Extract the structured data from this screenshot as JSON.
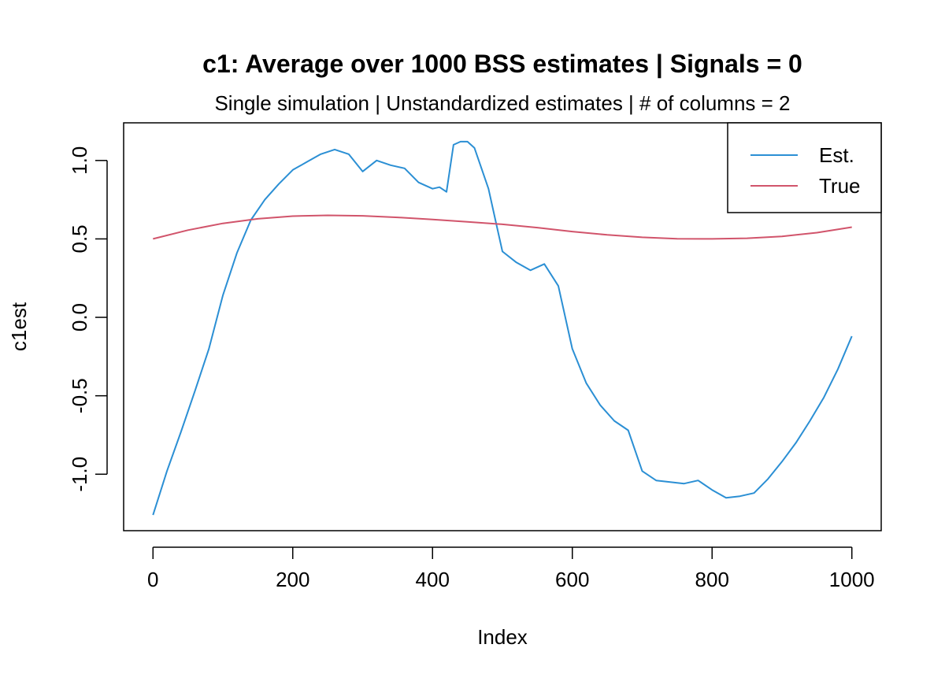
{
  "chart_data": {
    "type": "line",
    "title": "c1: Average over 1000 BSS estimates  |  Signals = 0",
    "subtitle": "Single simulation  |  Unstandardized estimates  |  # of columns = 2",
    "xlabel": "Index",
    "ylabel": "c1est",
    "xlim": [
      -42,
      1042
    ],
    "ylim": [
      -1.36,
      1.24
    ],
    "x_ticks": [
      0,
      200,
      400,
      600,
      800,
      1000
    ],
    "x_tick_labels": [
      "0",
      "200",
      "400",
      "600",
      "800",
      "1000"
    ],
    "y_ticks": [
      -1.0,
      -0.5,
      0.0,
      0.5,
      1.0
    ],
    "y_tick_labels": [
      "-1.0",
      "-0.5",
      "0.0",
      "0.5",
      "1.0"
    ],
    "grid": false,
    "legend_position": "top-right",
    "series": [
      {
        "name": "Est.",
        "color": "#2b8fd4",
        "x": [
          0,
          20,
          40,
          60,
          80,
          100,
          120,
          140,
          160,
          180,
          200,
          220,
          240,
          260,
          280,
          300,
          320,
          340,
          360,
          380,
          400,
          410,
          420,
          430,
          440,
          450,
          460,
          470,
          480,
          490,
          500,
          520,
          540,
          560,
          580,
          600,
          620,
          640,
          660,
          680,
          700,
          720,
          740,
          760,
          780,
          800,
          820,
          840,
          860,
          880,
          900,
          920,
          940,
          960,
          980,
          1000
        ],
        "y": [
          -1.26,
          -0.98,
          -0.73,
          -0.47,
          -0.2,
          0.14,
          0.41,
          0.62,
          0.75,
          0.85,
          0.94,
          0.99,
          1.04,
          1.07,
          1.04,
          0.93,
          1.0,
          0.97,
          0.95,
          0.86,
          0.82,
          0.83,
          0.8,
          1.1,
          1.12,
          1.12,
          1.08,
          0.95,
          0.82,
          0.62,
          0.42,
          0.35,
          0.3,
          0.34,
          0.2,
          -0.2,
          -0.42,
          -0.56,
          -0.66,
          -0.72,
          -0.98,
          -1.04,
          -1.05,
          -1.06,
          -1.04,
          -1.1,
          -1.15,
          -1.14,
          -1.12,
          -1.03,
          -0.92,
          -0.8,
          -0.66,
          -0.51,
          -0.33,
          -0.12
        ]
      },
      {
        "name": "True",
        "color": "#d1546b",
        "x": [
          0,
          50,
          100,
          150,
          200,
          250,
          300,
          350,
          400,
          450,
          500,
          550,
          600,
          650,
          700,
          750,
          800,
          850,
          900,
          950,
          1000
        ],
        "y": [
          0.5,
          0.556,
          0.599,
          0.628,
          0.645,
          0.65,
          0.647,
          0.637,
          0.624,
          0.609,
          0.593,
          0.572,
          0.547,
          0.526,
          0.51,
          0.501,
          0.5,
          0.504,
          0.516,
          0.54,
          0.575
        ]
      }
    ]
  }
}
